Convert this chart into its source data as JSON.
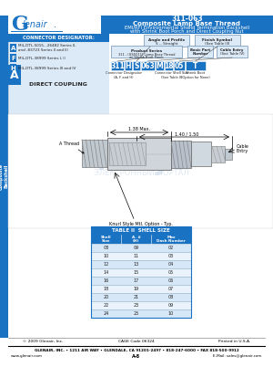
{
  "title_num": "311-063",
  "title_line1": "Composite Lamp Base Thread",
  "title_line2": "EMI/RFI Environmental Shield Termination Backshell",
  "title_line3": "with Shrink Boot Porch and Direct Coupling Nut",
  "header_bg": "#1a72c2",
  "header_text_color": "#ffffff",
  "side_tab_bg": "#1a72c2",
  "box_bg": "#dce9f7",
  "connector_designator_title": "CONNECTOR DESIGNATOR:",
  "part_number_boxes": [
    "311",
    "H",
    "S",
    "063",
    "M",
    "18",
    "05",
    "T"
  ],
  "table_title": "TABLE II  SHELL SIZE",
  "table_header_bg": "#1a72c2",
  "table_rows": [
    [
      "08",
      "09",
      "02"
    ],
    [
      "10",
      "11",
      "03"
    ],
    [
      "12",
      "13",
      "04"
    ],
    [
      "14",
      "15",
      "05"
    ],
    [
      "16",
      "17",
      "06"
    ],
    [
      "18",
      "19",
      "07"
    ],
    [
      "20",
      "21",
      "08"
    ],
    [
      "22",
      "23",
      "09"
    ],
    [
      "24",
      "25",
      "10"
    ]
  ],
  "footer_left": "© 2009 Glenair, Inc.",
  "footer_center": "CAGE Code 06324",
  "footer_right": "Printed in U.S.A.",
  "footer2": "GLENAIR, INC. • 1211 AIR WAY • GLENDALE, CA 91201-2497 • 818-247-6000 • FAX 818-500-9912",
  "footer2b": "www.glenair.com",
  "footer2c": "A-8",
  "footer2d": "E-Mail: sales@glenair.com",
  "bg_color": "#ffffff",
  "table_row_even": "#d6e8f7",
  "table_row_odd": "#eaf3fb"
}
